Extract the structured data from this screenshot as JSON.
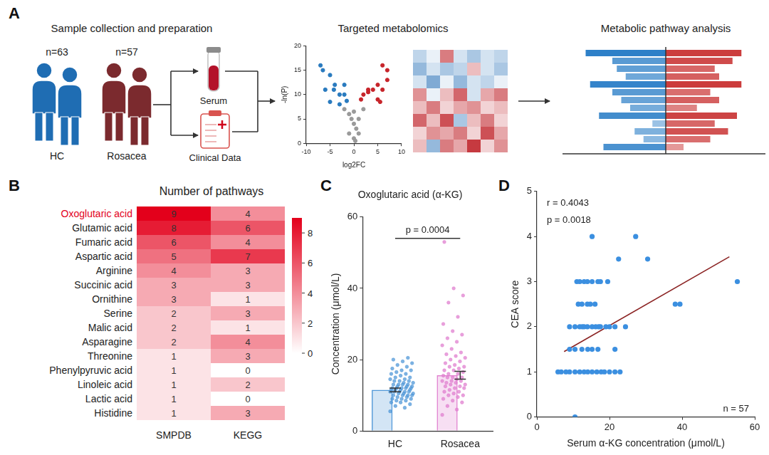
{
  "panel_labels": [
    "A",
    "B",
    "C",
    "D"
  ],
  "diagram": {
    "title": "Sample collection and preparation",
    "groups": [
      {
        "label": "HC",
        "n": "n=63",
        "color": "#1f6db3"
      },
      {
        "label": "Rosacea",
        "n": "n=57",
        "color": "#7b2a2e"
      }
    ],
    "samples": [
      "Serum",
      "Clinical Data"
    ],
    "metabolomics_title": "Targeted metabolomics",
    "heatmap_range": [
      -1,
      1
    ],
    "heatmap_cells": [
      [
        -0.3,
        -0.1,
        0.6,
        -0.2,
        -0.4,
        -0.2,
        -0.3
      ],
      [
        -0.5,
        -0.2,
        -0.4,
        -0.3,
        0.3,
        -0.2,
        -0.4
      ],
      [
        -0.2,
        -0.6,
        -0.1,
        -0.5,
        -0.2,
        -0.3,
        -0.1
      ],
      [
        0.5,
        -0.1,
        0.3,
        0.7,
        -0.2,
        0.4,
        0.6
      ],
      [
        0.3,
        0.6,
        0.2,
        0.4,
        0.5,
        0.2,
        0.3
      ],
      [
        0.7,
        0.3,
        0.8,
        -0.4,
        0.3,
        0.6,
        0.2
      ],
      [
        0.2,
        0.5,
        0.4,
        0.6,
        0.2,
        0.8,
        0.4
      ],
      [
        0.3,
        -0.5,
        0.6,
        0.4,
        0.9,
        0.2,
        0.5
      ]
    ],
    "pathway_title": "Metabolic pathway analysis",
    "pathway_bars": {
      "left": [
        0.9,
        0.6,
        0.55,
        0.45,
        0.85,
        0.6,
        0.5,
        0.4,
        0.75,
        0.15,
        0.35,
        0.25,
        0.7
      ],
      "right": [
        0.85,
        0.75,
        0.55,
        0.6,
        0.85,
        0.5,
        0.6,
        0.35,
        0.8,
        0.55,
        0.7,
        0.5,
        0.2
      ],
      "left_color": "#1f77c4",
      "right_color": "#c62828"
    }
  },
  "chart_data": [
    {
      "type": "scatter",
      "x_label": "log2FC",
      "y_label": "-ln(P)",
      "xlim": [
        -10,
        10
      ],
      "xticks": [
        -10,
        -5,
        0,
        5,
        10
      ],
      "ylim": [
        0,
        20
      ],
      "yticks": [
        0,
        5,
        10,
        15,
        20
      ],
      "grid": false,
      "series": [
        {
          "color": "#2a7bbf",
          "x": [
            -7,
            -6.5,
            -5,
            -6,
            -4.2,
            -3,
            -2,
            -5,
            -3,
            -4,
            -2,
            -1.5
          ],
          "values": [
            16,
            15,
            14,
            11,
            11,
            10,
            10,
            8.5,
            8,
            12,
            12,
            8.7
          ]
        },
        {
          "color": "#c7252b",
          "x": [
            2,
            3,
            4,
            5,
            6,
            7,
            7,
            6,
            5,
            3,
            5.5,
            1.5
          ],
          "values": [
            10,
            11,
            11,
            12,
            11,
            13,
            15,
            16,
            9,
            10.5,
            8.5,
            9
          ]
        },
        {
          "color": "#9a9a9a",
          "x": [
            -1,
            -0.5,
            0,
            0.5,
            -1,
            0,
            1,
            1,
            0,
            2,
            -2,
            0.3
          ],
          "values": [
            6,
            5,
            4,
            3,
            2,
            1,
            2,
            5,
            6.5,
            7,
            7,
            0.5
          ]
        }
      ]
    },
    {
      "type": "heatmap",
      "title": "Number of pathways",
      "color": "#e3001b",
      "data_labels": true,
      "rows": [
        "Oxoglutaric acid",
        "Glutamic acid",
        "Fumaric acid",
        "Aspartic acid",
        "Arginine",
        "Succinic acid",
        "Ornithine",
        "Serine",
        "Malic acid",
        "Asparagine",
        "Threonine",
        "Phenylpyruvic acid",
        "Linoleic acid",
        "Lactic acid",
        "Histidine"
      ],
      "columns": [
        "SMPDB",
        "KEGG"
      ],
      "cells": [
        [
          9,
          4
        ],
        [
          8,
          6
        ],
        [
          6,
          4
        ],
        [
          5,
          7
        ],
        [
          4,
          3
        ],
        [
          3,
          3
        ],
        [
          3,
          1
        ],
        [
          2,
          3
        ],
        [
          2,
          1
        ],
        [
          2,
          4
        ],
        [
          1,
          3
        ],
        [
          1,
          0
        ],
        [
          1,
          2
        ],
        [
          1,
          0
        ],
        [
          1,
          3
        ]
      ],
      "colorbar": {
        "range": [
          0,
          9
        ],
        "ticks": [
          0,
          2,
          4,
          6,
          8
        ]
      }
    },
    {
      "type": "bar",
      "title": "Oxoglutaric acid (α-KG)",
      "y_label": "Concentration (μmol/L)",
      "categories": [
        "HC",
        "Rosacea"
      ],
      "values": [
        11.5,
        15.6
      ],
      "errors": [
        0.5,
        1.1
      ],
      "colors": [
        "#4f97d8",
        "#e07fcf"
      ],
      "points": [
        [
          5.5,
          6.5,
          7,
          7.5,
          8,
          8,
          8.5,
          8.5,
          9,
          9,
          9,
          9.5,
          9.5,
          10,
          10,
          10,
          10,
          10.5,
          10.5,
          10.5,
          11,
          11,
          11,
          11,
          11,
          11.5,
          11.5,
          11.5,
          11.5,
          12,
          12,
          12,
          12,
          12,
          12.5,
          12.5,
          12.5,
          13,
          13,
          13,
          13,
          13.5,
          13.5,
          14,
          14,
          14,
          14.5,
          14.5,
          15,
          15,
          15.5,
          16,
          16,
          16.5,
          17,
          17,
          17.5,
          18,
          18.5,
          19,
          19.5,
          20,
          20.5
        ],
        [
          4.5,
          6,
          7,
          8,
          8.5,
          9,
          9.5,
          10,
          10,
          10.5,
          11,
          11,
          11.5,
          12,
          12,
          12.5,
          12.5,
          13,
          13,
          13.5,
          13.5,
          14,
          14,
          14,
          14.5,
          15,
          15,
          15,
          15.5,
          16,
          16,
          16.5,
          17,
          17,
          17.5,
          18,
          18,
          18.5,
          19,
          19.5,
          20,
          20.5,
          21,
          21.5,
          22,
          23,
          24,
          25,
          26,
          27,
          28,
          30,
          32,
          36,
          38,
          40,
          53
        ]
      ],
      "ylim": [
        0,
        60
      ],
      "yticks": [
        0,
        20,
        40,
        60
      ],
      "grid": false,
      "annotations": [
        {
          "text": "p = 0.0004",
          "between": [
            "HC",
            "Rosacea"
          ]
        }
      ]
    },
    {
      "type": "scatter",
      "x_label": "Serum α-KG concentration (μmol/L)",
      "y_label": "CEA score",
      "color": "#3b8fe0",
      "x": [
        10.5,
        5.8,
        6.7,
        8,
        9,
        10.5,
        11.8,
        13,
        14,
        15.2,
        16.5,
        17.7,
        18.6,
        20,
        21.5,
        22.9,
        9,
        10.5,
        12.4,
        14,
        15.2,
        16.8,
        21.5,
        9,
        10.5,
        11.8,
        12.5,
        13,
        13.9,
        15.2,
        16.2,
        17,
        17.5,
        19,
        20,
        21.5,
        24.4,
        11.4,
        12.4,
        13.9,
        14.7,
        16,
        38.1,
        39.4,
        11,
        11.8,
        13,
        13.9,
        15.2,
        16.8,
        17.5,
        19.5,
        55.2,
        22.5,
        30.5,
        15.2,
        27.2
      ],
      "values": [
        0,
        1,
        1,
        1,
        1,
        1,
        1,
        1,
        1,
        1,
        1,
        1,
        1,
        1,
        1,
        1,
        1.5,
        1.5,
        1.5,
        1.5,
        1.5,
        1.5,
        1.5,
        2,
        2,
        2,
        2,
        2,
        2,
        2,
        2,
        2,
        2,
        2,
        2,
        2,
        2,
        2.5,
        2.5,
        2.5,
        2.5,
        2.5,
        2.5,
        2.5,
        3,
        3,
        3,
        3,
        3,
        3,
        3,
        3,
        3,
        3.5,
        3.5,
        4,
        4
      ],
      "fit_line": {
        "x": [
          7.5,
          53
        ],
        "values": [
          1.45,
          3.55
        ],
        "color": "#8b2323"
      },
      "xlim": [
        0,
        60
      ],
      "xticks": [
        0,
        20,
        40,
        60
      ],
      "ylim": [
        0,
        5
      ],
      "yticks": [
        0,
        1,
        2,
        3,
        4,
        5
      ],
      "grid": false,
      "annotations": [
        "r = 0.4043",
        "p = 0.0018",
        "n = 57"
      ]
    }
  ]
}
